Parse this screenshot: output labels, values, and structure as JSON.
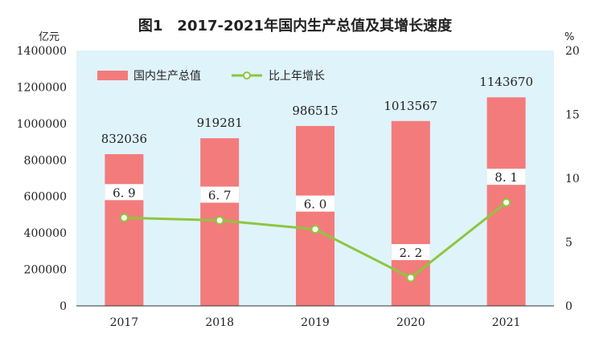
{
  "chart_data": {
    "type": "bar",
    "title": "图1　2017-2021年国内生产总值及其增长速度",
    "categories": [
      "2017",
      "2018",
      "2019",
      "2020",
      "2021"
    ],
    "series": [
      {
        "name": "国内生产总值",
        "type": "bar",
        "axis": "left",
        "color": "#f37b7b",
        "values": [
          832036,
          919281,
          986515,
          1013567,
          1143670
        ],
        "labels": [
          "832036",
          "919281",
          "986515",
          "1013567",
          "1143670"
        ]
      },
      {
        "name": "比上年增长",
        "type": "line",
        "axis": "right",
        "color": "#8dc63f",
        "values": [
          6.9,
          6.7,
          6.0,
          2.2,
          8.1
        ],
        "labels": [
          "6. 9",
          "6. 7",
          "6. 0",
          "2. 2",
          "8. 1"
        ]
      }
    ],
    "y_left": {
      "unit": "亿元",
      "range": [
        0,
        1400000
      ],
      "ticks": [
        "0",
        "200000",
        "400000",
        "600000",
        "800000",
        "1000000",
        "1200000",
        "1400000"
      ]
    },
    "y_right": {
      "unit": "%",
      "range": [
        0,
        20
      ],
      "ticks": [
        "0",
        "5",
        "10",
        "15",
        "20"
      ]
    },
    "legend_placement": "top-left",
    "grid": false,
    "plot_background": "#dff3fb"
  }
}
